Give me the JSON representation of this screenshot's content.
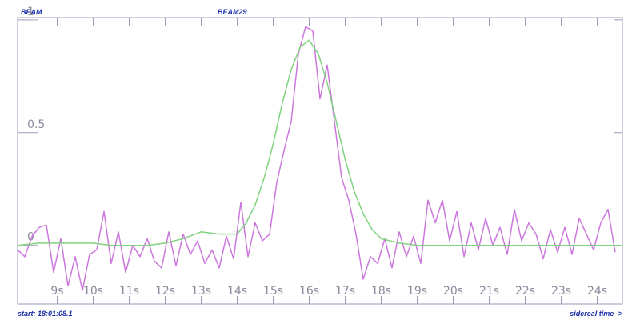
{
  "header": {
    "left": "BEAM",
    "center": "BEAM29"
  },
  "footer": {
    "start": "start: 18:01:08.1",
    "axis_note": "sidereal time ->"
  },
  "chart_data": {
    "type": "line",
    "xlim": [
      7.9,
      24.7
    ],
    "ylim": [
      -0.26,
      1.01
    ],
    "xticks": [
      {
        "value": 9,
        "label": "9s"
      },
      {
        "value": 10,
        "label": "10s"
      },
      {
        "value": 11,
        "label": "11s"
      },
      {
        "value": 12,
        "label": "12s"
      },
      {
        "value": 13,
        "label": "13s"
      },
      {
        "value": 14,
        "label": "14s"
      },
      {
        "value": 15,
        "label": "15s"
      },
      {
        "value": 16,
        "label": "16s"
      },
      {
        "value": 17,
        "label": "17s"
      },
      {
        "value": 18,
        "label": "18s"
      },
      {
        "value": 19,
        "label": "19s"
      },
      {
        "value": 20,
        "label": "20s"
      },
      {
        "value": 21,
        "label": "21s"
      },
      {
        "value": 22,
        "label": "22s"
      },
      {
        "value": 23,
        "label": "23s"
      },
      {
        "value": 24,
        "label": "24s"
      }
    ],
    "yticks": [
      0,
      0.5,
      1
    ],
    "series": [
      {
        "color": "#cc77dd",
        "x": [
          7.9,
          8.1,
          8.3,
          8.5,
          8.7,
          8.9,
          9.1,
          9.3,
          9.5,
          9.7,
          9.9,
          10.1,
          10.3,
          10.5,
          10.7,
          10.9,
          11.1,
          11.3,
          11.5,
          11.7,
          11.9,
          12.1,
          12.3,
          12.5,
          12.7,
          12.9,
          13.1,
          13.3,
          13.5,
          13.7,
          13.9,
          14.1,
          14.3,
          14.5,
          14.7,
          14.9,
          15.1,
          15.3,
          15.5,
          15.7,
          15.9,
          16.1,
          16.3,
          16.5,
          16.7,
          16.9,
          17.1,
          17.3,
          17.5,
          17.7,
          17.9,
          18.1,
          18.3,
          18.5,
          18.7,
          18.9,
          19.1,
          19.3,
          19.5,
          19.7,
          19.9,
          20.1,
          20.3,
          20.5,
          20.7,
          20.9,
          21.1,
          21.3,
          21.5,
          21.7,
          21.9,
          22.1,
          22.3,
          22.5,
          22.7,
          22.9,
          23.1,
          23.3,
          23.5,
          23.7,
          23.9,
          24.1,
          24.3,
          24.5
        ],
        "values": [
          -0.02,
          -0.05,
          0.04,
          0.08,
          0.09,
          -0.12,
          0.03,
          -0.18,
          -0.05,
          -0.2,
          -0.04,
          -0.02,
          0.15,
          -0.08,
          0.06,
          -0.12,
          0.0,
          -0.05,
          0.03,
          -0.07,
          -0.1,
          0.06,
          -0.09,
          0.05,
          -0.04,
          0.02,
          -0.08,
          -0.02,
          -0.1,
          0.04,
          -0.06,
          0.19,
          -0.05,
          0.1,
          0.02,
          0.05,
          0.28,
          0.42,
          0.55,
          0.85,
          0.97,
          0.95,
          0.65,
          0.8,
          0.55,
          0.3,
          0.2,
          0.05,
          -0.15,
          -0.05,
          -0.08,
          0.03,
          -0.1,
          0.06,
          -0.05,
          0.04,
          -0.08,
          0.2,
          0.1,
          0.2,
          0.02,
          0.15,
          -0.05,
          0.1,
          -0.02,
          0.12,
          0.0,
          0.08,
          -0.04,
          0.16,
          0.02,
          0.1,
          0.05,
          -0.06,
          0.07,
          -0.03,
          0.08,
          -0.04,
          0.12,
          0.05,
          -0.02,
          0.1,
          0.16,
          -0.03
        ]
      },
      {
        "color": "#7fd37f",
        "x": [
          7.9,
          8.5,
          9,
          9.5,
          10,
          10.5,
          11,
          11.5,
          12,
          12.5,
          13,
          13.5,
          14,
          14.25,
          14.5,
          14.75,
          15,
          15.25,
          15.5,
          15.75,
          16,
          16.25,
          16.5,
          16.75,
          17,
          17.25,
          17.5,
          17.75,
          18,
          18.5,
          19,
          20,
          21,
          22,
          23,
          24,
          24.7
        ],
        "values": [
          0.0,
          0.01,
          0.01,
          0.01,
          0.01,
          0.0,
          0.0,
          0.0,
          0.01,
          0.03,
          0.06,
          0.05,
          0.05,
          0.1,
          0.18,
          0.3,
          0.45,
          0.63,
          0.78,
          0.88,
          0.91,
          0.85,
          0.72,
          0.55,
          0.38,
          0.24,
          0.14,
          0.07,
          0.03,
          0.01,
          0.0,
          0.0,
          0.0,
          0.0,
          0.0,
          0.0,
          0.0
        ]
      }
    ]
  }
}
